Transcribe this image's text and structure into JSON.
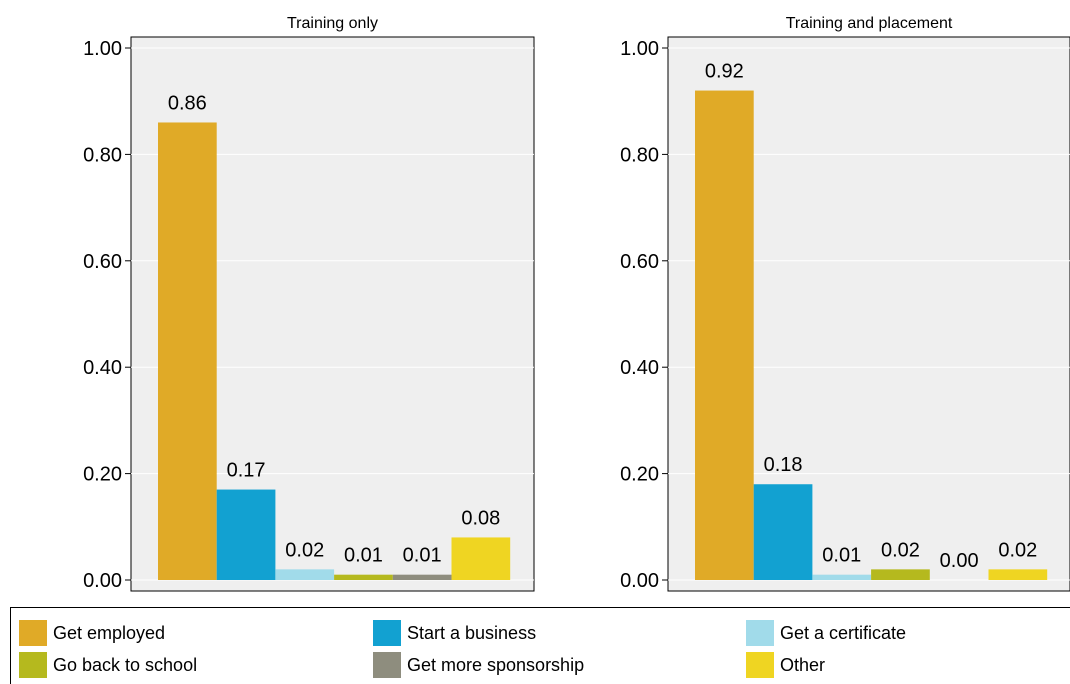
{
  "chart_data": [
    {
      "type": "bar",
      "title": "Training only",
      "categories": [
        "Get employed",
        "Start a business",
        "Get a certificate",
        "Go back to school",
        "Get more sponsorship",
        "Other"
      ],
      "values": [
        0.86,
        0.17,
        0.02,
        0.01,
        0.01,
        0.08
      ],
      "value_labels": [
        "0.86",
        "0.17",
        "0.02",
        "0.01",
        "0.01",
        "0.08"
      ],
      "ylim": [
        0,
        1
      ],
      "yticks": [
        "0.00",
        "0.20",
        "0.40",
        "0.60",
        "0.80",
        "1.00"
      ]
    },
    {
      "type": "bar",
      "title": "Training and placement",
      "categories": [
        "Get employed",
        "Start a business",
        "Get a certificate",
        "Go back to school",
        "Get more sponsorship",
        "Other"
      ],
      "values": [
        0.92,
        0.18,
        0.01,
        0.02,
        0.0,
        0.02
      ],
      "value_labels": [
        "0.92",
        "0.18",
        "0.01",
        "0.02",
        "0.00",
        "0.02"
      ],
      "ylim": [
        0,
        1
      ],
      "yticks": [
        "0.00",
        "0.20",
        "0.40",
        "0.60",
        "0.80",
        "1.00"
      ]
    }
  ],
  "colors": [
    "#e0aa27",
    "#12a1d1",
    "#a1dbea",
    "#b5b91e",
    "#8e8d7e",
    "#efd522"
  ],
  "plot_background": "#efefef",
  "grid": true,
  "legend": {
    "position": "bottom",
    "items": [
      {
        "label": "Get employed",
        "color": "#e0aa27"
      },
      {
        "label": "Start a business",
        "color": "#12a1d1"
      },
      {
        "label": "Get a certificate",
        "color": "#a1dbea"
      },
      {
        "label": "Go back to school",
        "color": "#b5b91e"
      },
      {
        "label": "Get more sponsorship",
        "color": "#8e8d7e"
      },
      {
        "label": "Other",
        "color": "#efd522"
      }
    ]
  }
}
